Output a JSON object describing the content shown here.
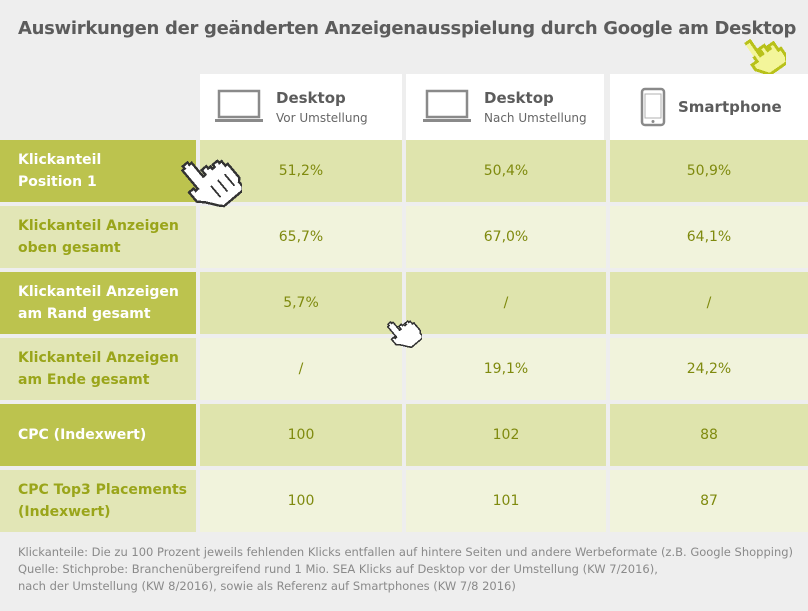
{
  "title": "Auswirkungen der geänderten Anzeigenausspielung durch Google am Desktop",
  "columns": [
    {
      "main": "Desktop",
      "sub": "Vor Umstellung",
      "icon": "laptop-icon"
    },
    {
      "main": "Desktop",
      "sub": "Nach Umstellung",
      "icon": "laptop-icon"
    },
    {
      "main": "Smartphone",
      "sub": "",
      "icon": "smartphone-icon"
    }
  ],
  "rows": [
    {
      "label": "Klickanteil\nPosition 1",
      "values": [
        "51,2%",
        "50,4%",
        "50,9%"
      ]
    },
    {
      "label": "Klickanteil Anzeigen\noben gesamt",
      "values": [
        "65,7%",
        "67,0%",
        "64,1%"
      ]
    },
    {
      "label": "Klickanteil Anzeigen\nam Rand gesamt",
      "values": [
        "5,7%",
        "/",
        "/"
      ]
    },
    {
      "label": "Klickanteil Anzeigen\nam Ende gesamt",
      "values": [
        "/",
        "19,1%",
        "24,2%"
      ]
    },
    {
      "label": "CPC (Indexwert)",
      "values": [
        "100",
        "102",
        "88"
      ]
    },
    {
      "label": "CPC Top3 Placements\n(Indexwert)",
      "values": [
        "100",
        "101",
        "87"
      ]
    }
  ],
  "footnotes": [
    "Klickanteile: Die zu 100 Prozent jeweils fehlenden Klicks entfallen auf hintere Seiten und andere Werbeformate (z.B. Google Shopping)",
    "Quelle: Stichprobe: Branchenübergreifend rund 1 Mio. SEA Klicks auf Desktop vor der Umstellung (KW 7/2016),",
    "nach der Umstellung (KW 8/2016), sowie als Referenz auf Smartphones (KW 7/8 2016)"
  ],
  "colors": {
    "label_dark": "#bcc34e",
    "label_light": "#e2e6b6",
    "cell_dark": "#dfe4ad",
    "cell_light": "#f1f3dc",
    "value_text": "#7f8a0e",
    "background": "#eeeeee"
  },
  "chart_data": {
    "type": "table",
    "title": "Auswirkungen der geänderten Anzeigenausspielung durch Google am Desktop",
    "columns": [
      "Desktop Vor Umstellung",
      "Desktop Nach Umstellung",
      "Smartphone"
    ],
    "rows": [
      {
        "label": "Klickanteil Position 1",
        "values": [
          "51,2%",
          "50,4%",
          "50,9%"
        ]
      },
      {
        "label": "Klickanteil Anzeigen oben gesamt",
        "values": [
          "65,7%",
          "67,0%",
          "64,1%"
        ]
      },
      {
        "label": "Klickanteil Anzeigen am Rand gesamt",
        "values": [
          "5,7%",
          "/",
          "/"
        ]
      },
      {
        "label": "Klickanteil Anzeigen am Ende gesamt",
        "values": [
          "/",
          "19,1%",
          "24,2%"
        ]
      },
      {
        "label": "CPC (Indexwert)",
        "values": [
          "100",
          "102",
          "88"
        ]
      },
      {
        "label": "CPC Top3 Placements (Indexwert)",
        "values": [
          "100",
          "101",
          "87"
        ]
      }
    ]
  }
}
